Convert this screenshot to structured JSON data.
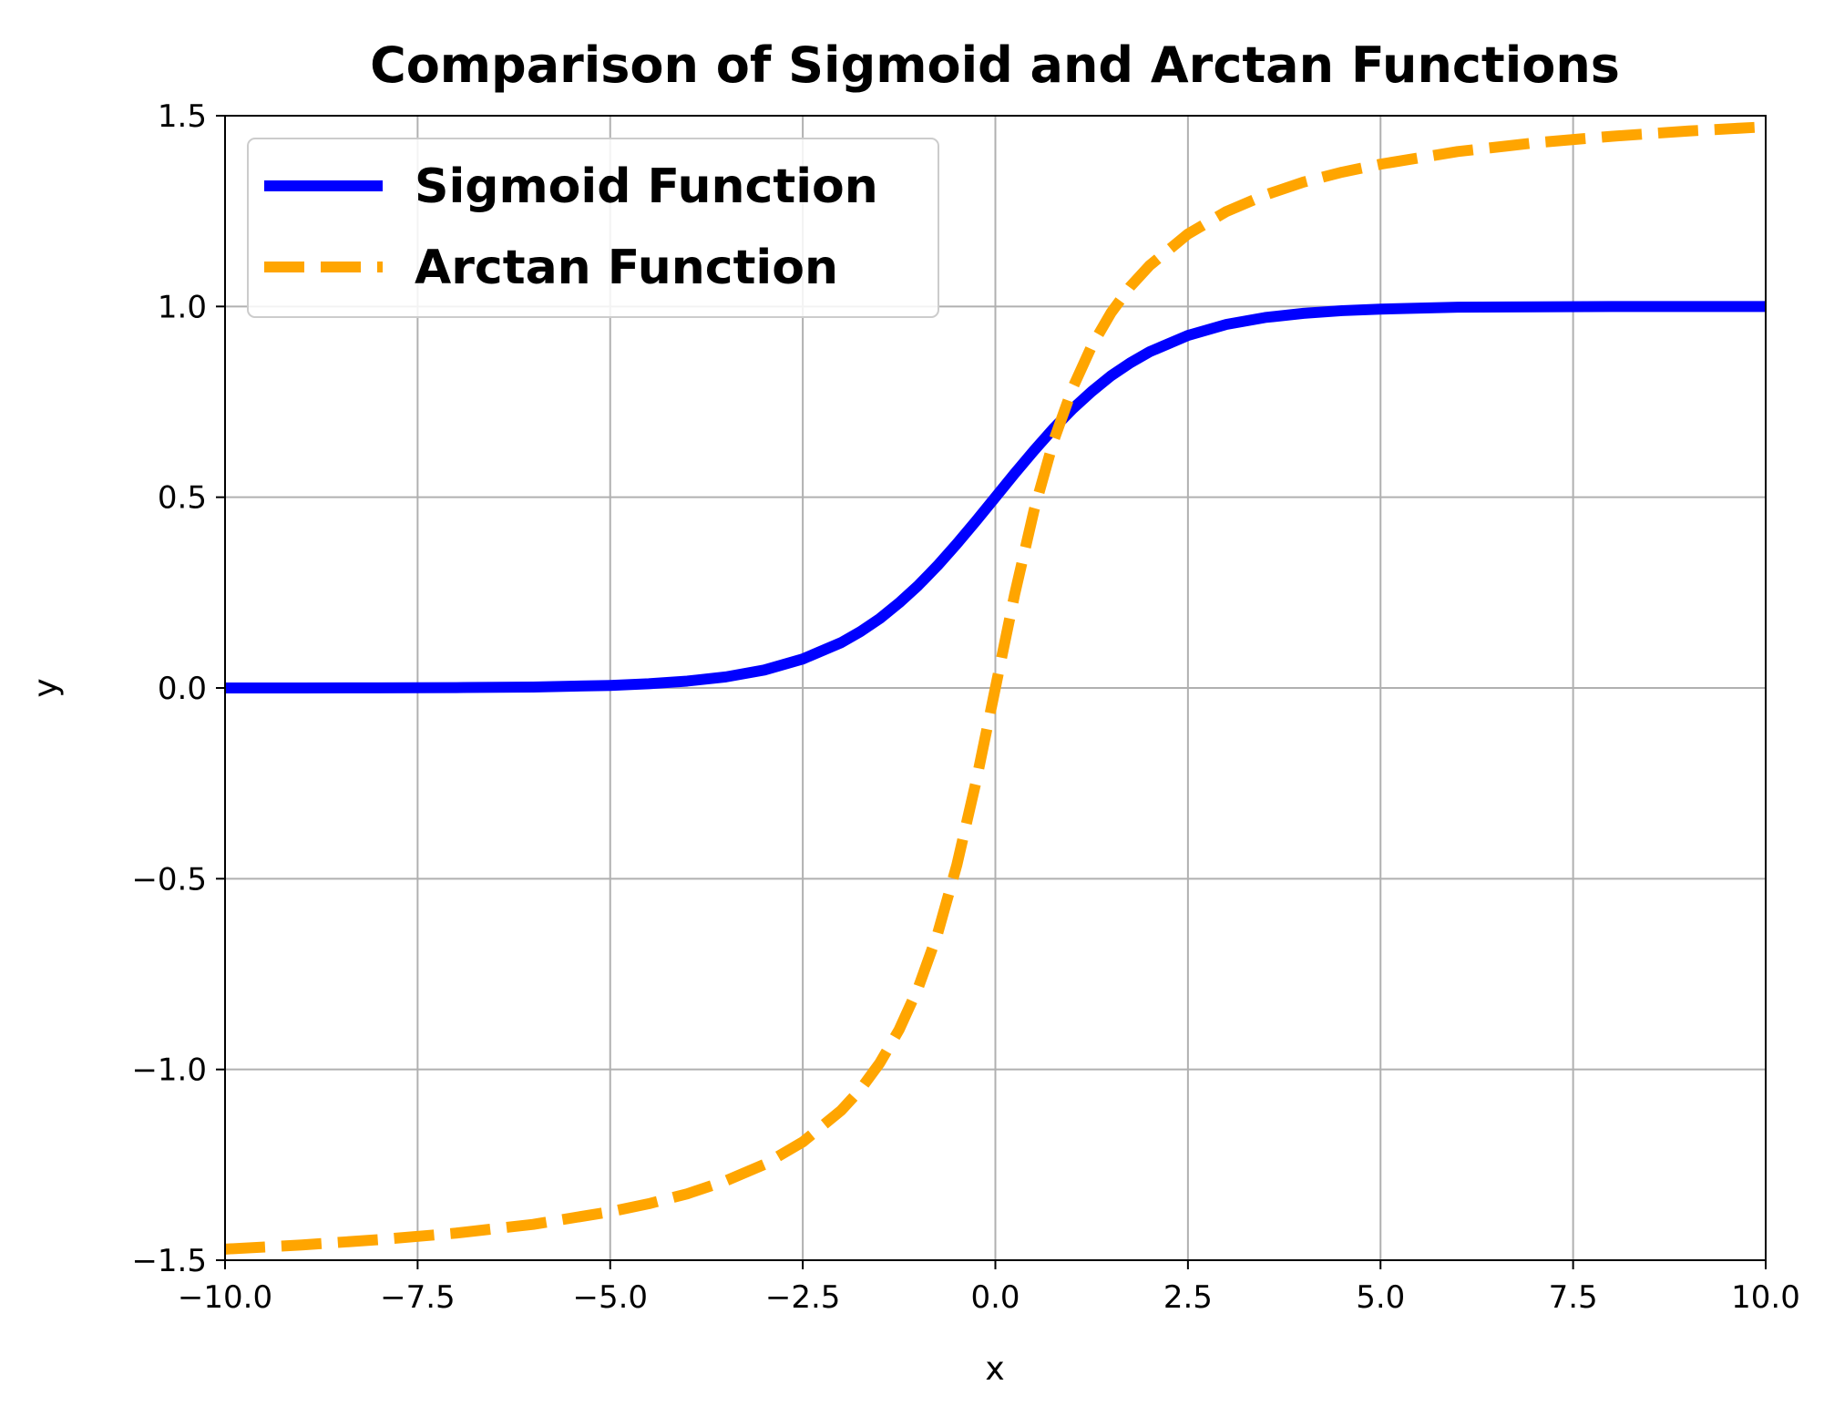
{
  "chart_data": {
    "type": "line",
    "title": "Comparison of Sigmoid and Arctan Functions",
    "xlabel": "x",
    "ylabel": "y",
    "xlim": [
      -10.0,
      10.0
    ],
    "ylim": [
      -1.5,
      1.5
    ],
    "x_ticks": [
      -10.0,
      -7.5,
      -5.0,
      -2.5,
      0.0,
      2.5,
      5.0,
      7.5,
      10.0
    ],
    "x_tick_labels": [
      "−10.0",
      "−7.5",
      "−5.0",
      "−2.5",
      "0.0",
      "2.5",
      "5.0",
      "7.5",
      "10.0"
    ],
    "y_ticks": [
      1.5,
      1.0,
      0.5,
      0.0,
      -0.5,
      -1.0,
      -1.5
    ],
    "y_tick_labels": [
      "1.5",
      "1.0",
      "0.5",
      "0.0",
      "−0.5",
      "−1.0",
      "−1.5"
    ],
    "grid": true,
    "legend_position": "top-left",
    "x": [
      -10.0,
      -9.0,
      -8.0,
      -7.0,
      -6.0,
      -5.0,
      -4.5,
      -4.0,
      -3.5,
      -3.0,
      -2.5,
      -2.0,
      -1.75,
      -1.5,
      -1.25,
      -1.0,
      -0.75,
      -0.5,
      -0.25,
      0.0,
      0.25,
      0.5,
      0.75,
      1.0,
      1.25,
      1.5,
      1.75,
      2.0,
      2.5,
      3.0,
      3.5,
      4.0,
      4.5,
      5.0,
      6.0,
      7.0,
      8.0,
      9.0,
      10.0
    ],
    "series": [
      {
        "name": "Sigmoid Function",
        "color": "#0000ff",
        "style": "solid",
        "values": [
          0.0,
          0.0001,
          0.0003,
          0.0009,
          0.0025,
          0.0067,
          0.011,
          0.018,
          0.029,
          0.047,
          0.076,
          0.119,
          0.148,
          0.182,
          0.223,
          0.269,
          0.321,
          0.378,
          0.438,
          0.5,
          0.562,
          0.622,
          0.679,
          0.731,
          0.777,
          0.818,
          0.852,
          0.881,
          0.924,
          0.953,
          0.971,
          0.982,
          0.989,
          0.993,
          0.998,
          0.999,
          1.0,
          1.0,
          1.0
        ]
      },
      {
        "name": "Arctan Function",
        "color": "#ffa500",
        "style": "dashed",
        "values": [
          -1.471,
          -1.46,
          -1.446,
          -1.429,
          -1.406,
          -1.373,
          -1.352,
          -1.326,
          -1.292,
          -1.249,
          -1.19,
          -1.107,
          -1.052,
          -0.983,
          -0.896,
          -0.785,
          -0.644,
          -0.464,
          -0.245,
          0.0,
          0.245,
          0.464,
          0.644,
          0.785,
          0.896,
          0.983,
          1.052,
          1.107,
          1.19,
          1.249,
          1.292,
          1.326,
          1.352,
          1.373,
          1.406,
          1.429,
          1.446,
          1.46,
          1.471
        ]
      }
    ]
  }
}
